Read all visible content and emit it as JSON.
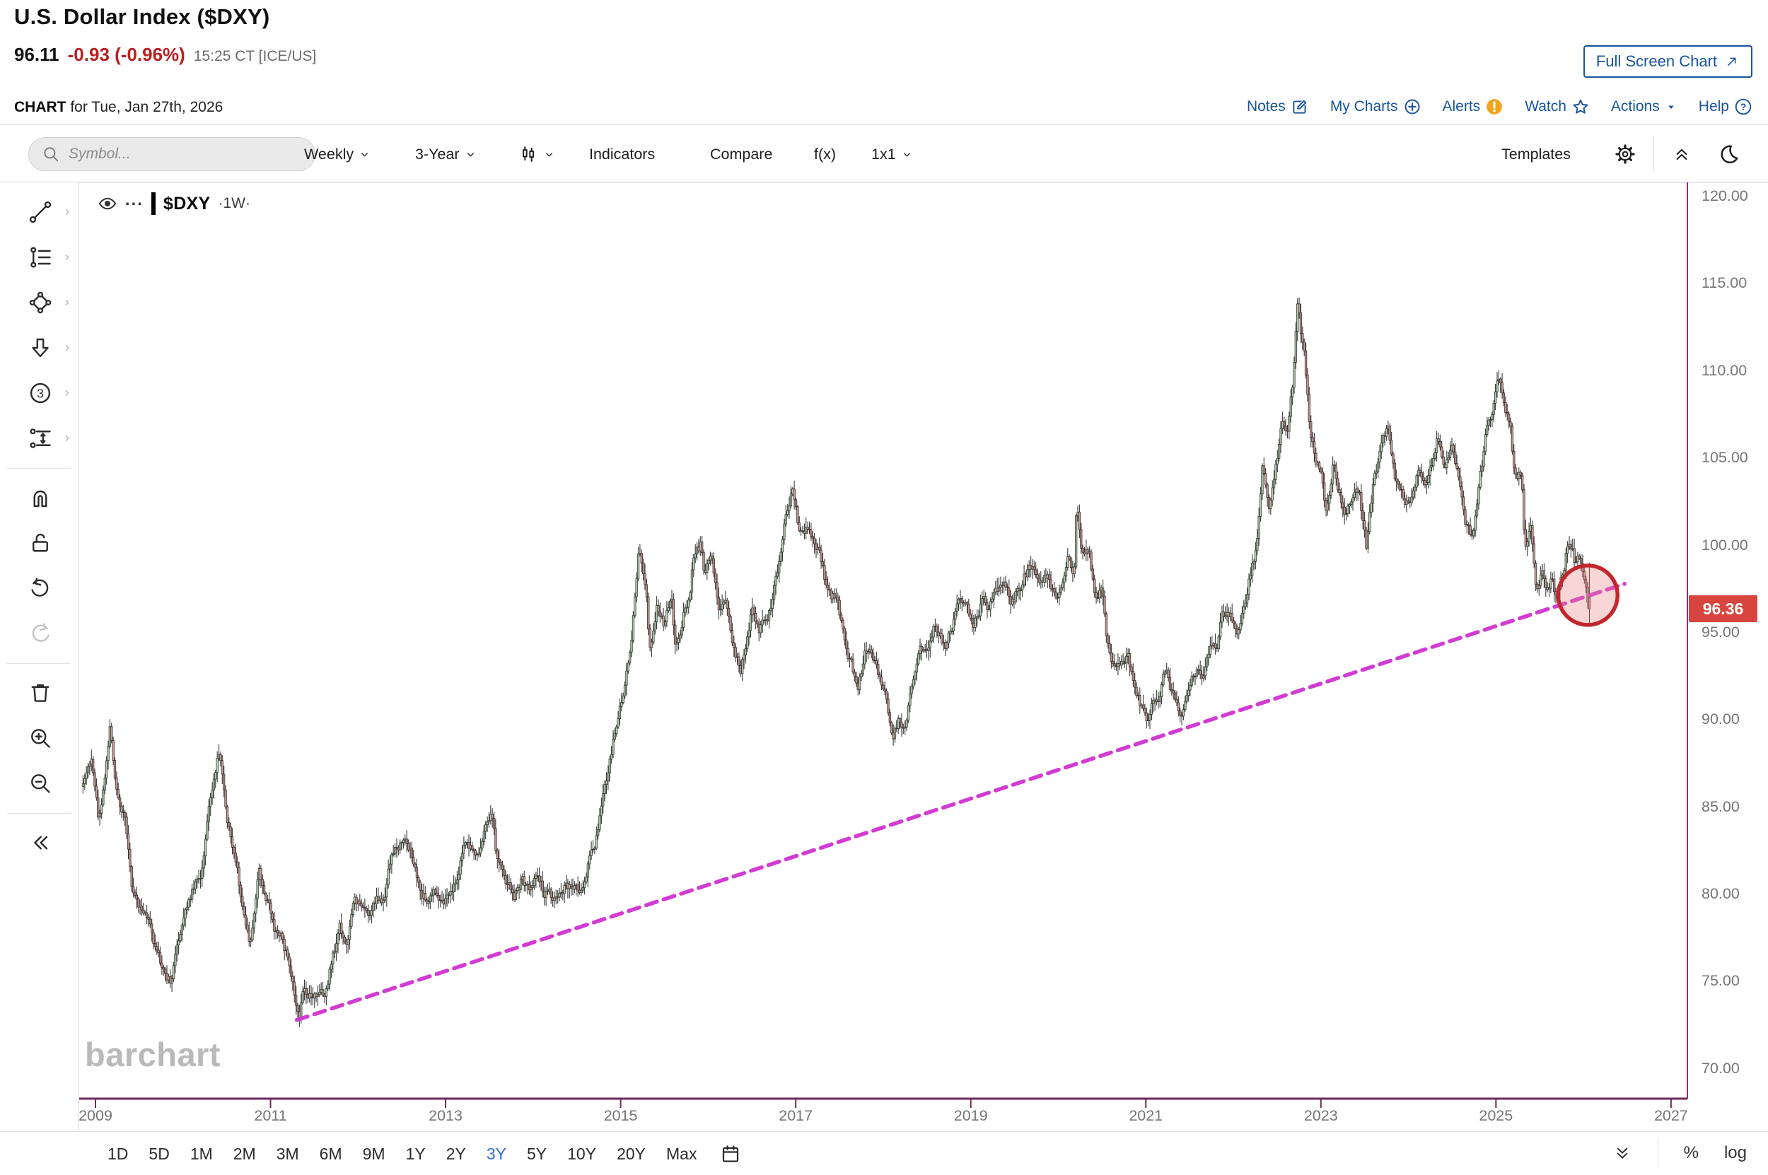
{
  "header": {
    "title": "U.S. Dollar Index ($DXY)",
    "last_price": "96.11",
    "change": "-0.93 (-0.96%)",
    "quote_time": "15:25 CT [ICE/US]",
    "chart_for_label": "CHART",
    "chart_for_rest": " for Tue, Jan 27th, 2026",
    "full_screen_label": "Full Screen Chart",
    "links": [
      {
        "label": "Notes",
        "icon": "notes"
      },
      {
        "label": "My Charts",
        "icon": "plus-circle"
      },
      {
        "label": "Alerts",
        "icon": "alert-badge"
      },
      {
        "label": "Watch",
        "icon": "star"
      },
      {
        "label": "Actions",
        "icon": "caret-down"
      },
      {
        "label": "Help",
        "icon": "help"
      }
    ]
  },
  "toolbar": {
    "symbol_placeholder": "Symbol...",
    "period": "Weekly",
    "range": "3-Year",
    "indicators": "Indicators",
    "compare": "Compare",
    "fx": "f(x)",
    "layout": "1x1",
    "templates": "Templates"
  },
  "sidebar": {
    "tools": [
      {
        "icon": "trend-line",
        "submenu": true
      },
      {
        "icon": "fibonacci",
        "submenu": true
      },
      {
        "icon": "shapes",
        "submenu": true
      },
      {
        "icon": "arrow-annotation",
        "submenu": true
      },
      {
        "icon": "elliott-wave",
        "submenu": true
      },
      {
        "icon": "measure",
        "submenu": true
      },
      {
        "divider": true
      },
      {
        "icon": "magnet"
      },
      {
        "icon": "unlock"
      },
      {
        "icon": "undo"
      },
      {
        "icon": "redo",
        "disabled": true
      },
      {
        "divider": true
      },
      {
        "icon": "trash"
      },
      {
        "icon": "zoom-in"
      },
      {
        "icon": "zoom-out"
      },
      {
        "divider": true
      },
      {
        "icon": "collapse"
      }
    ]
  },
  "legend": {
    "symbol": "$DXY",
    "interval": "·1W·",
    "dots": "···"
  },
  "watermark": "barchart",
  "footer": {
    "ranges": [
      "1D",
      "5D",
      "1M",
      "2M",
      "3M",
      "6M",
      "9M",
      "1Y",
      "2Y",
      "3Y",
      "5Y",
      "10Y",
      "20Y",
      "Max"
    ],
    "active_range": "3Y",
    "percent_label": "%",
    "log_label": "log"
  },
  "chart_data": {
    "type": "candlestick",
    "symbol": "$DXY",
    "interval": "weekly",
    "title": "U.S. Dollar Index weekly candles, 3-year template expanded to 2009-2027 view",
    "y_ticks": [
      "120.00",
      "115.00",
      "110.00",
      "105.00",
      "100.00",
      "95.00",
      "90.00",
      "85.00",
      "80.00",
      "75.00",
      "70.00"
    ],
    "x_ticks": [
      "2009",
      "2011",
      "2013",
      "2015",
      "2017",
      "2019",
      "2021",
      "2023",
      "2025",
      "2027"
    ],
    "x_domain": [
      2008.86,
      2027.18
    ],
    "y_domain": [
      68.2,
      120.8
    ],
    "grid": false,
    "current_price_label": "96.36",
    "current_price": 96.36,
    "last_candle": {
      "open": 97.0,
      "high": 99.0,
      "low": 95.55,
      "close": 96.36
    },
    "monthly_close_anchors": [
      [
        2008.855,
        86.5
      ],
      [
        2008.96,
        87.8
      ],
      [
        2009.04,
        84.2
      ],
      [
        2009.17,
        89.6
      ],
      [
        2009.25,
        85.6
      ],
      [
        2009.33,
        84.6
      ],
      [
        2009.42,
        80.1
      ],
      [
        2009.54,
        79.1
      ],
      [
        2009.62,
        78.4
      ],
      [
        2009.71,
        76.4
      ],
      [
        2009.79,
        75.7
      ],
      [
        2009.87,
        74.9
      ],
      [
        2009.96,
        77.8
      ],
      [
        2010.04,
        79.4
      ],
      [
        2010.12,
        80.3
      ],
      [
        2010.21,
        81.0
      ],
      [
        2010.29,
        84.8
      ],
      [
        2010.37,
        87.3
      ],
      [
        2010.42,
        88.2
      ],
      [
        2010.5,
        84.6
      ],
      [
        2010.58,
        82.6
      ],
      [
        2010.67,
        79.6
      ],
      [
        2010.76,
        76.9
      ],
      [
        2010.87,
        81.4
      ],
      [
        2010.96,
        79.6
      ],
      [
        2011.04,
        78.1
      ],
      [
        2011.12,
        77.6
      ],
      [
        2011.21,
        76.1
      ],
      [
        2011.33,
        73.1
      ],
      [
        2011.37,
        74.6
      ],
      [
        2011.46,
        74.3
      ],
      [
        2011.54,
        73.9
      ],
      [
        2011.62,
        74.3
      ],
      [
        2011.71,
        76.6
      ],
      [
        2011.79,
        78.1
      ],
      [
        2011.87,
        77.1
      ],
      [
        2011.96,
        79.6
      ],
      [
        2012.04,
        79.1
      ],
      [
        2012.12,
        78.7
      ],
      [
        2012.21,
        79.6
      ],
      [
        2012.29,
        79.3
      ],
      [
        2012.37,
        82.1
      ],
      [
        2012.46,
        82.7
      ],
      [
        2012.54,
        83.5
      ],
      [
        2012.62,
        82.1
      ],
      [
        2012.71,
        79.9
      ],
      [
        2012.79,
        79.7
      ],
      [
        2012.87,
        80.3
      ],
      [
        2012.96,
        79.9
      ],
      [
        2013.04,
        79.7
      ],
      [
        2013.12,
        80.6
      ],
      [
        2013.21,
        82.8
      ],
      [
        2013.29,
        82.9
      ],
      [
        2013.37,
        82.0
      ],
      [
        2013.46,
        83.7
      ],
      [
        2013.54,
        84.4
      ],
      [
        2013.58,
        81.9
      ],
      [
        2013.62,
        81.4
      ],
      [
        2013.71,
        80.4
      ],
      [
        2013.79,
        79.9
      ],
      [
        2013.87,
        80.8
      ],
      [
        2013.96,
        80.3
      ],
      [
        2014.04,
        81.2
      ],
      [
        2014.12,
        80.1
      ],
      [
        2014.21,
        79.9
      ],
      [
        2014.29,
        80.0
      ],
      [
        2014.37,
        80.5
      ],
      [
        2014.46,
        80.3
      ],
      [
        2014.54,
        80.1
      ],
      [
        2014.62,
        81.6
      ],
      [
        2014.71,
        82.9
      ],
      [
        2014.79,
        85.6
      ],
      [
        2014.87,
        87.6
      ],
      [
        2014.96,
        89.9
      ],
      [
        2015.04,
        92.1
      ],
      [
        2015.12,
        94.8
      ],
      [
        2015.21,
        99.9
      ],
      [
        2015.29,
        97.6
      ],
      [
        2015.33,
        94.1
      ],
      [
        2015.42,
        96.6
      ],
      [
        2015.5,
        95.3
      ],
      [
        2015.58,
        97.6
      ],
      [
        2015.63,
        93.9
      ],
      [
        2015.71,
        95.9
      ],
      [
        2015.79,
        97.1
      ],
      [
        2015.83,
        99.4
      ],
      [
        2015.92,
        100.1
      ],
      [
        2015.96,
        98.4
      ],
      [
        2016.04,
        99.4
      ],
      [
        2016.12,
        96.1
      ],
      [
        2016.21,
        96.6
      ],
      [
        2016.29,
        94.2
      ],
      [
        2016.37,
        92.9
      ],
      [
        2016.46,
        94.7
      ],
      [
        2016.5,
        96.2
      ],
      [
        2016.58,
        95.1
      ],
      [
        2016.67,
        95.6
      ],
      [
        2016.71,
        96.3
      ],
      [
        2016.79,
        98.6
      ],
      [
        2016.87,
        101.4
      ],
      [
        2016.96,
        103.3
      ],
      [
        2017.04,
        101.0
      ],
      [
        2017.12,
        101.1
      ],
      [
        2017.21,
        100.3
      ],
      [
        2017.29,
        99.2
      ],
      [
        2017.37,
        97.3
      ],
      [
        2017.46,
        96.9
      ],
      [
        2017.54,
        95.3
      ],
      [
        2017.62,
        93.4
      ],
      [
        2017.71,
        92.1
      ],
      [
        2017.79,
        93.8
      ],
      [
        2017.87,
        94.0
      ],
      [
        2017.96,
        92.4
      ],
      [
        2018.04,
        90.9
      ],
      [
        2018.1,
        88.9
      ],
      [
        2018.17,
        90.0
      ],
      [
        2018.25,
        89.9
      ],
      [
        2018.33,
        91.7
      ],
      [
        2018.42,
        94.0
      ],
      [
        2018.5,
        94.3
      ],
      [
        2018.58,
        95.5
      ],
      [
        2018.62,
        95.1
      ],
      [
        2018.71,
        94.3
      ],
      [
        2018.79,
        95.4
      ],
      [
        2018.87,
        96.9
      ],
      [
        2018.96,
        96.2
      ],
      [
        2019.04,
        95.7
      ],
      [
        2019.12,
        96.7
      ],
      [
        2019.21,
        96.5
      ],
      [
        2019.29,
        97.4
      ],
      [
        2019.37,
        97.7
      ],
      [
        2019.46,
        96.7
      ],
      [
        2019.54,
        97.4
      ],
      [
        2019.62,
        98.3
      ],
      [
        2019.71,
        98.9
      ],
      [
        2019.79,
        97.6
      ],
      [
        2019.87,
        98.4
      ],
      [
        2019.96,
        97.0
      ],
      [
        2020.04,
        97.7
      ],
      [
        2020.12,
        99.4
      ],
      [
        2020.18,
        98.1
      ],
      [
        2020.21,
        102.5
      ],
      [
        2020.27,
        99.6
      ],
      [
        2020.35,
        99.8
      ],
      [
        2020.42,
        97.1
      ],
      [
        2020.5,
        97.5
      ],
      [
        2020.56,
        94.5
      ],
      [
        2020.65,
        92.8
      ],
      [
        2020.71,
        93.4
      ],
      [
        2020.79,
        93.8
      ],
      [
        2020.85,
        92.6
      ],
      [
        2020.92,
        91.2
      ],
      [
        2021.0,
        90.0
      ],
      [
        2021.08,
        91.0
      ],
      [
        2021.15,
        91.1
      ],
      [
        2021.23,
        92.9
      ],
      [
        2021.29,
        91.6
      ],
      [
        2021.37,
        90.4
      ],
      [
        2021.44,
        90.6
      ],
      [
        2021.5,
        92.4
      ],
      [
        2021.58,
        92.9
      ],
      [
        2021.65,
        92.6
      ],
      [
        2021.73,
        94.1
      ],
      [
        2021.81,
        94.0
      ],
      [
        2021.87,
        96.1
      ],
      [
        2021.96,
        96.0
      ],
      [
        2022.04,
        95.3
      ],
      [
        2022.12,
        96.1
      ],
      [
        2022.19,
        98.4
      ],
      [
        2022.27,
        99.9
      ],
      [
        2022.33,
        104.6
      ],
      [
        2022.4,
        102.0
      ],
      [
        2022.48,
        104.3
      ],
      [
        2022.56,
        107.1
      ],
      [
        2022.62,
        106.6
      ],
      [
        2022.69,
        109.9
      ],
      [
        2022.73,
        113.9
      ],
      [
        2022.77,
        112.3
      ],
      [
        2022.81,
        110.8
      ],
      [
        2022.87,
        107.1
      ],
      [
        2022.94,
        104.9
      ],
      [
        2023.0,
        104.0
      ],
      [
        2023.06,
        101.9
      ],
      [
        2023.14,
        104.7
      ],
      [
        2023.21,
        102.9
      ],
      [
        2023.29,
        101.8
      ],
      [
        2023.37,
        103.3
      ],
      [
        2023.44,
        103.0
      ],
      [
        2023.52,
        100.0
      ],
      [
        2023.6,
        103.4
      ],
      [
        2023.69,
        105.7
      ],
      [
        2023.77,
        106.6
      ],
      [
        2023.85,
        103.9
      ],
      [
        2023.94,
        102.6
      ],
      [
        2024.02,
        102.0
      ],
      [
        2024.1,
        104.2
      ],
      [
        2024.17,
        103.3
      ],
      [
        2024.25,
        104.4
      ],
      [
        2024.33,
        106.4
      ],
      [
        2024.42,
        104.7
      ],
      [
        2024.5,
        106.0
      ],
      [
        2024.58,
        103.8
      ],
      [
        2024.65,
        101.2
      ],
      [
        2024.73,
        100.6
      ],
      [
        2024.81,
        103.4
      ],
      [
        2024.9,
        106.9
      ],
      [
        2024.98,
        108.1
      ],
      [
        2025.04,
        109.7
      ],
      [
        2025.1,
        108.0
      ],
      [
        2025.17,
        106.7
      ],
      [
        2025.21,
        103.9
      ],
      [
        2025.29,
        104.3
      ],
      [
        2025.33,
        99.8
      ],
      [
        2025.4,
        100.9
      ],
      [
        2025.46,
        97.0
      ],
      [
        2025.52,
        98.6
      ],
      [
        2025.58,
        97.6
      ],
      [
        2025.65,
        98.1
      ],
      [
        2025.69,
        96.9
      ],
      [
        2025.75,
        98.0
      ],
      [
        2025.81,
        99.7
      ],
      [
        2025.87,
        100.0
      ],
      [
        2025.9,
        99.1
      ],
      [
        2025.94,
        99.4
      ],
      [
        2025.98,
        98.7
      ],
      [
        2026.02,
        98.1
      ],
      [
        2026.07,
        96.36
      ]
    ],
    "trendline": {
      "x1": 2011.3,
      "y1": 72.8,
      "x2": 2026.47,
      "y2": 97.8,
      "style": "dashed",
      "color": "#d23bd2"
    },
    "highlight_circle": {
      "x": 2026.05,
      "price": 97.15,
      "radius_px": 42,
      "stroke": "#c1272d",
      "fill": "rgba(235,130,130,0.33)"
    },
    "colors": {
      "up_fill": "#bccfb6",
      "up_stroke": "#2e3b2c",
      "down_fill": "#c99d97",
      "down_stroke": "#3b2c2c",
      "wick": "#3a3a3a",
      "axis_bottom": "#6e2a5a",
      "axis_right": "#8e2a8e",
      "price_badge_bg": "#d8453e"
    }
  }
}
